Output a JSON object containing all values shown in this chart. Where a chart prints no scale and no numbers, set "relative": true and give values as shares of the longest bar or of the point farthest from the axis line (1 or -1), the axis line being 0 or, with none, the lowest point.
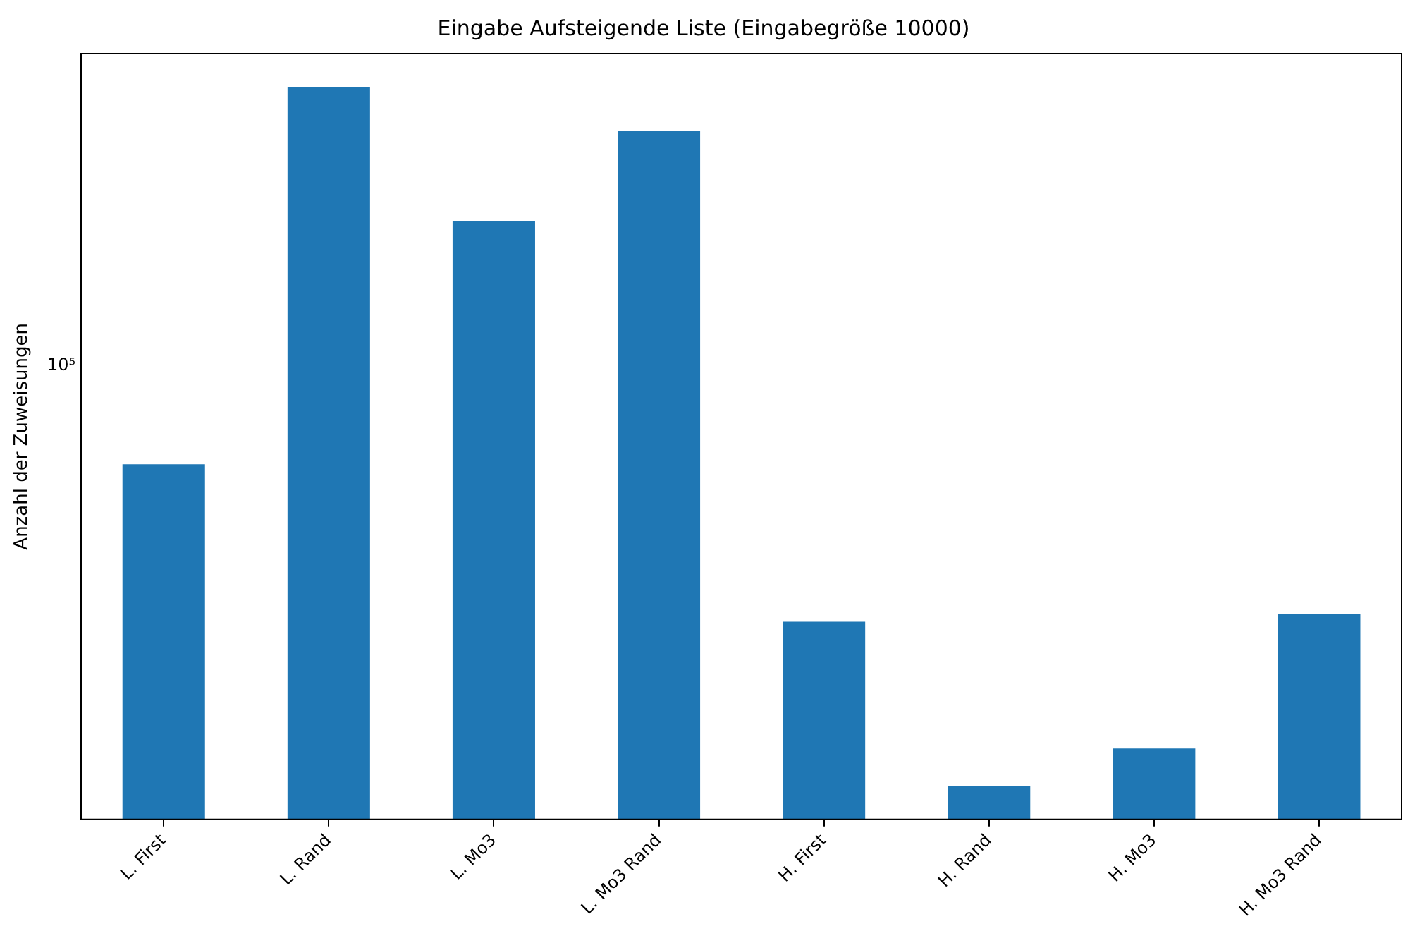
{
  "chart_data": {
    "type": "bar",
    "title": "Eingabe Aufsteigende Liste (Eingabegröße 10000)",
    "ylabel": "Anzahl der Zuweisungen",
    "categories": [
      "L. First",
      "L. Rand",
      "L. Mo3",
      "L. Mo3 Rand",
      "H. First",
      "H. Rand",
      "H. Mo3",
      "H. Mo3 Rand"
    ],
    "values": [
      0.485,
      1,
      0.817,
      0.94,
      0.27,
      0.046,
      0.097,
      0.281
    ],
    "color": "#1f77b4",
    "relative": true,
    "annotations": [
      "10⁵"
    ],
    "grid": false,
    "legend": false
  }
}
